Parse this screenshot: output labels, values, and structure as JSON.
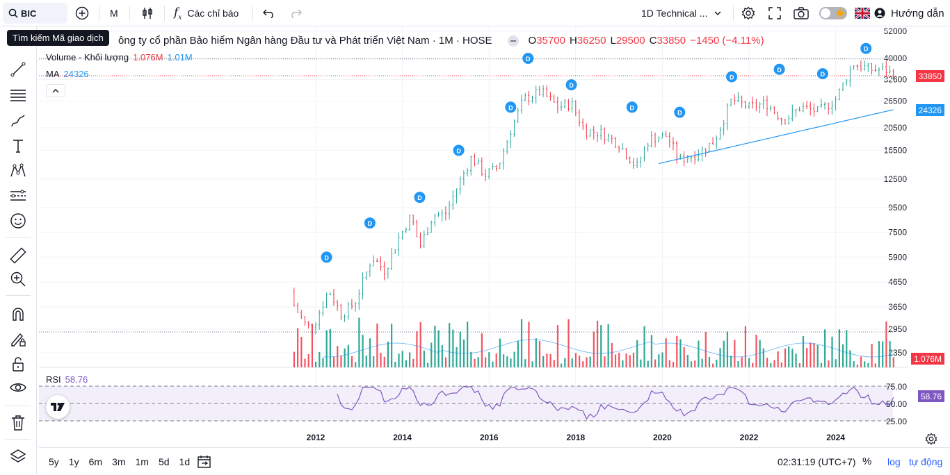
{
  "toolbar": {
    "symbol": "BIC",
    "interval": "M",
    "indicators_label": "Các chỉ báo",
    "layout_name": "1D Technical ...",
    "guide_label": "Hướng dẫn"
  },
  "tooltip": "Tìm kiếm Mã giao dịch",
  "legend": {
    "title_visible": "ông ty cổ phần Bảo hiểm Ngân hàng Đầu tư và Phát triển Việt Nam · 1M · HOSE",
    "open_label": "O",
    "open": "35700",
    "high_label": "H",
    "high": "36250",
    "low_label": "L",
    "low": "29500",
    "close_label": "C",
    "close": "33850",
    "change": "−1450 (−4.11%)",
    "volume_label": "Volume - Khối lượng",
    "volume_value": "1.076M",
    "volume_ma": "1.01M",
    "ma_label": "MA",
    "ma_value": "24326",
    "rsi_label": "RSI",
    "rsi_value": "58.76"
  },
  "price_labels": {
    "last": "33850",
    "ma": "24326",
    "volume": "1.076M",
    "rsi": "58.76"
  },
  "colors": {
    "up": "#089981",
    "up_candle": "#26a69a",
    "down": "#f23645",
    "ma": "#2196f3",
    "rsi": "#7e57c2",
    "rsi_band": "#f3effa"
  },
  "bottom": {
    "ranges": [
      "5y",
      "1y",
      "6m",
      "3m",
      "1m",
      "5d",
      "1d"
    ],
    "time": "02:31:19 (UTC+7)",
    "percent": "%",
    "log": "log",
    "auto": "tự động"
  },
  "chart_data": {
    "type": "candlestick",
    "price_scale": "log",
    "y_ticks": [
      52000,
      40000,
      32600,
      26500,
      20500,
      16500,
      12500,
      9500,
      7500,
      5900,
      4650,
      3650,
      2950,
      2350
    ],
    "x_ticks": [
      "2012",
      "2014",
      "2016",
      "2018",
      "2020",
      "2022",
      "2024"
    ],
    "rsi_ticks": [
      "75.00",
      "50.00",
      "25.00"
    ],
    "dividend_marker": "D",
    "last_close": 33850,
    "ma_last": 24326,
    "rsi_last": 58.76,
    "price_path": [
      [
        2011.5,
        3700
      ],
      [
        2011.8,
        3000
      ],
      [
        2012.0,
        3200
      ],
      [
        2012.3,
        4300
      ],
      [
        2012.6,
        3400
      ],
      [
        2012.9,
        3800
      ],
      [
        2013.3,
        5900
      ],
      [
        2013.6,
        5200
      ],
      [
        2013.9,
        7000
      ],
      [
        2014.2,
        8800
      ],
      [
        2014.4,
        6500
      ],
      [
        2014.7,
        8800
      ],
      [
        2015.0,
        9000
      ],
      [
        2015.3,
        12000
      ],
      [
        2015.6,
        15500
      ],
      [
        2015.9,
        13000
      ],
      [
        2016.2,
        14000
      ],
      [
        2016.5,
        20000
      ],
      [
        2016.8,
        27000
      ],
      [
        2017.2,
        29000
      ],
      [
        2017.6,
        25000
      ],
      [
        2017.9,
        26000
      ],
      [
        2018.2,
        20000
      ],
      [
        2018.6,
        19500
      ],
      [
        2019.0,
        17500
      ],
      [
        2019.4,
        14000
      ],
      [
        2019.7,
        18500
      ],
      [
        2020.1,
        19000
      ],
      [
        2020.4,
        15000
      ],
      [
        2020.8,
        16000
      ],
      [
        2021.2,
        18000
      ],
      [
        2021.6,
        27000
      ],
      [
        2022.0,
        25000
      ],
      [
        2022.4,
        26000
      ],
      [
        2022.8,
        22000
      ],
      [
        2023.2,
        25000
      ],
      [
        2023.6,
        24000
      ],
      [
        2024.0,
        27000
      ],
      [
        2024.4,
        38000
      ],
      [
        2024.8,
        36000
      ],
      [
        2025.2,
        35700
      ],
      [
        2025.3,
        33850
      ]
    ]
  }
}
